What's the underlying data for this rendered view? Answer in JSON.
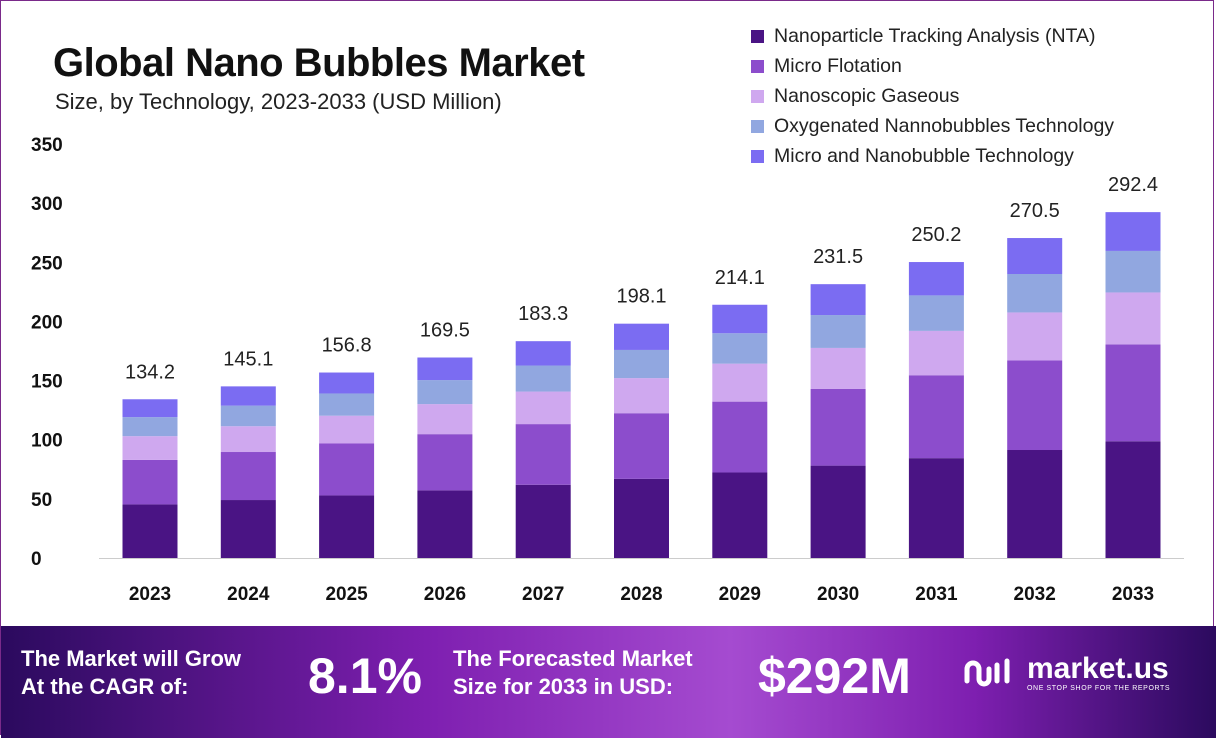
{
  "header": {
    "title": "Global Nano Bubbles Market",
    "subtitle": "Size, by Technology, 2023-2033 (USD Million)"
  },
  "chart_data": {
    "type": "bar",
    "stacked": true,
    "categories": [
      "2023",
      "2024",
      "2025",
      "2026",
      "2027",
      "2028",
      "2029",
      "2030",
      "2031",
      "2032",
      "2033"
    ],
    "series": [
      {
        "name": "Nanoparticle Tracking Analysis (NTA)",
        "color": "#4a1484",
        "values": [
          45.3,
          49.0,
          52.9,
          57.2,
          61.9,
          66.9,
          72.3,
          78.1,
          84.4,
          91.3,
          98.7
        ]
      },
      {
        "name": "Micro Flotation",
        "color": "#8c4dcc",
        "values": [
          37.6,
          40.6,
          43.9,
          47.5,
          51.3,
          55.5,
          59.9,
          64.8,
          70.1,
          75.7,
          81.9
        ]
      },
      {
        "name": "Nanoscopic Gaseous",
        "color": "#cfa8ef",
        "values": [
          20.1,
          21.8,
          23.5,
          25.4,
          27.5,
          29.7,
          32.1,
          34.7,
          37.5,
          40.6,
          43.9
        ]
      },
      {
        "name": "Oxygenated Nannobubbles Technology",
        "color": "#91a7e0",
        "values": [
          16.1,
          17.4,
          18.8,
          20.3,
          22.0,
          23.8,
          25.7,
          27.8,
          30.0,
          32.5,
          35.1
        ]
      },
      {
        "name": "Micro and Nanobubble Technology",
        "color": "#7b6cf2",
        "values": [
          15.1,
          16.3,
          17.7,
          19.1,
          20.6,
          22.2,
          24.1,
          26.1,
          28.2,
          30.4,
          32.8
        ]
      }
    ],
    "totals": [
      "134.2",
      "145.1",
      "156.8",
      "169.5",
      "183.3",
      "198.1",
      "214.1",
      "231.5",
      "250.2",
      "270.5",
      "292.4"
    ],
    "yticks": [
      "0",
      "50",
      "100",
      "150",
      "200",
      "250",
      "300",
      "350"
    ],
    "ylim": [
      0,
      350
    ],
    "xlabel": "",
    "ylabel": "",
    "grid": false,
    "legend_position": "top-right"
  },
  "footer": {
    "cagr_line1": "The Market will Grow",
    "cagr_line2": "At the CAGR of:",
    "cagr_value": "8.1%",
    "forecast_line1": "The Forecasted Market",
    "forecast_line2": "Size for 2033 in USD:",
    "forecast_value": "$292M",
    "logo_name": "market.us",
    "logo_tagline": "ONE STOP SHOP FOR THE REPORTS"
  }
}
